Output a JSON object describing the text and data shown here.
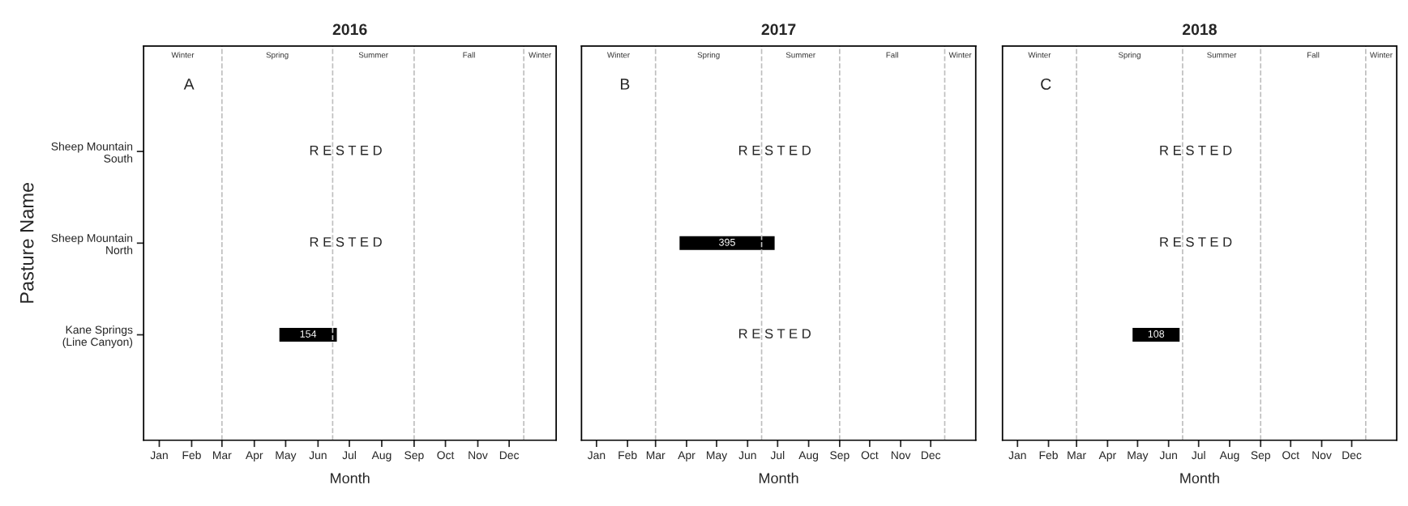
{
  "chart_data": [
    {
      "type": "bar",
      "orientation": "horizontal",
      "title": "2016",
      "xlabel": "Month",
      "ylabel": "Pasture Name",
      "categories": [
        "Sheep Mountain\nSouth",
        "Sheep Mountain\nNorth",
        "Kane Springs\n(Line Canyon)"
      ],
      "series": [
        {
          "color": "#000000",
          "values": [
            null,
            null,
            55
          ],
          "base": [
            null,
            null,
            16916
          ]
        }
      ],
      "xlim": [
        "2015-12-17",
        "2017-01-15"
      ],
      "xticks": [
        {
          "value": "2016-01-01",
          "label": "Jan"
        },
        {
          "value": "2016-02-01",
          "label": "Feb"
        },
        {
          "value": "2016-03-01",
          "label": "Mar"
        },
        {
          "value": "2016-04-01",
          "label": "Apr"
        },
        {
          "value": "2016-05-01",
          "label": "May"
        },
        {
          "value": "2016-06-01",
          "label": "Jun"
        },
        {
          "value": "2016-07-01",
          "label": "Jul"
        },
        {
          "value": "2016-08-01",
          "label": "Aug"
        },
        {
          "value": "2016-09-01",
          "label": "Sep"
        },
        {
          "value": "2016-10-01",
          "label": "Oct"
        },
        {
          "value": "2016-11-01",
          "label": "Nov"
        },
        {
          "value": "2016-12-01",
          "label": "Dec"
        }
      ],
      "ref_lines": [
        {
          "axis": "x",
          "value": "2016-03-01",
          "color": "#bebebe",
          "line_style": "dashed"
        },
        {
          "axis": "x",
          "value": "2016-06-15",
          "color": "#bebebe",
          "line_style": "dashed"
        },
        {
          "axis": "x",
          "value": "2016-09-01",
          "color": "#bebebe",
          "line_style": "dashed"
        },
        {
          "axis": "x",
          "value": "2016-12-15",
          "color": "#bebebe",
          "line_style": "dashed"
        }
      ],
      "annotations": [
        "A",
        "Winter",
        "Spring",
        "Summer",
        "Fall",
        "Winter",
        "R E S T E D",
        "R E S T E D",
        "154"
      ],
      "grid": false,
      "legend": false
    },
    {
      "type": "bar",
      "orientation": "horizontal",
      "title": "2017",
      "xlabel": "Month",
      "tick_labels": "x",
      "series": [
        {
          "color": "#000000",
          "values": [
            null,
            95,
            null
          ],
          "base": [
            null,
            17250,
            null
          ]
        }
      ],
      "xlim": [
        "2016-12-17",
        "2018-01-15"
      ],
      "xticks": [
        {
          "value": "2017-01-01",
          "label": "Jan"
        },
        {
          "value": "2017-02-01",
          "label": "Feb"
        },
        {
          "value": "2017-03-01",
          "label": "Mar"
        },
        {
          "value": "2017-04-01",
          "label": "Apr"
        },
        {
          "value": "2017-05-01",
          "label": "May"
        },
        {
          "value": "2017-06-01",
          "label": "Jun"
        },
        {
          "value": "2017-07-01",
          "label": "Jul"
        },
        {
          "value": "2017-08-01",
          "label": "Aug"
        },
        {
          "value": "2017-09-01",
          "label": "Sep"
        },
        {
          "value": "2017-10-01",
          "label": "Oct"
        },
        {
          "value": "2017-11-01",
          "label": "Nov"
        },
        {
          "value": "2017-12-01",
          "label": "Dec"
        }
      ],
      "ref_lines": [
        {
          "axis": "x",
          "value": "2017-03-01",
          "color": "#bebebe",
          "line_style": "dashed"
        },
        {
          "axis": "x",
          "value": "2017-06-15",
          "color": "#bebebe",
          "line_style": "dashed"
        },
        {
          "axis": "x",
          "value": "2017-09-01",
          "color": "#bebebe",
          "line_style": "dashed"
        },
        {
          "axis": "x",
          "value": "2017-12-15",
          "color": "#bebebe",
          "line_style": "dashed"
        }
      ],
      "annotations": [
        "B",
        "Winter",
        "Spring",
        "Summer",
        "Fall",
        "Winter",
        "R E S T E D",
        "R E S T E D",
        "395"
      ],
      "grid": false,
      "legend": false
    },
    {
      "type": "bar",
      "orientation": "horizontal",
      "title": "2018",
      "xlabel": "Month",
      "tick_labels": "x",
      "series": [
        {
          "color": "#000000",
          "values": [
            null,
            null,
            47
          ],
          "base": [
            null,
            null,
            17647
          ]
        }
      ],
      "xlim": [
        "2017-12-17",
        "2019-01-15"
      ],
      "xticks": [
        {
          "value": "2018-01-01",
          "label": "Jan"
        },
        {
          "value": "2018-02-01",
          "label": "Feb"
        },
        {
          "value": "2018-03-01",
          "label": "Mar"
        },
        {
          "value": "2018-04-01",
          "label": "Apr"
        },
        {
          "value": "2018-05-01",
          "label": "May"
        },
        {
          "value": "2018-06-01",
          "label": "Jun"
        },
        {
          "value": "2018-07-01",
          "label": "Jul"
        },
        {
          "value": "2018-08-01",
          "label": "Aug"
        },
        {
          "value": "2018-09-01",
          "label": "Sep"
        },
        {
          "value": "2018-10-01",
          "label": "Oct"
        },
        {
          "value": "2018-11-01",
          "label": "Nov"
        },
        {
          "value": "2018-12-01",
          "label": "Dec"
        }
      ],
      "ref_lines": [
        {
          "axis": "x",
          "value": "2018-03-01",
          "color": "#bebebe",
          "line_style": "dashed"
        },
        {
          "axis": "x",
          "value": "2018-06-15",
          "color": "#bebebe",
          "line_style": "dashed"
        },
        {
          "axis": "x",
          "value": "2018-09-01",
          "color": "#bebebe",
          "line_style": "dashed"
        },
        {
          "axis": "x",
          "value": "2018-12-15",
          "color": "#bebebe",
          "line_style": "dashed"
        }
      ],
      "annotations": [
        "C",
        "Winter",
        "Spring",
        "Summer",
        "Fall",
        "Winter",
        "R E S T E D",
        "R E S T E D",
        "108"
      ],
      "grid": false,
      "legend": false
    }
  ]
}
